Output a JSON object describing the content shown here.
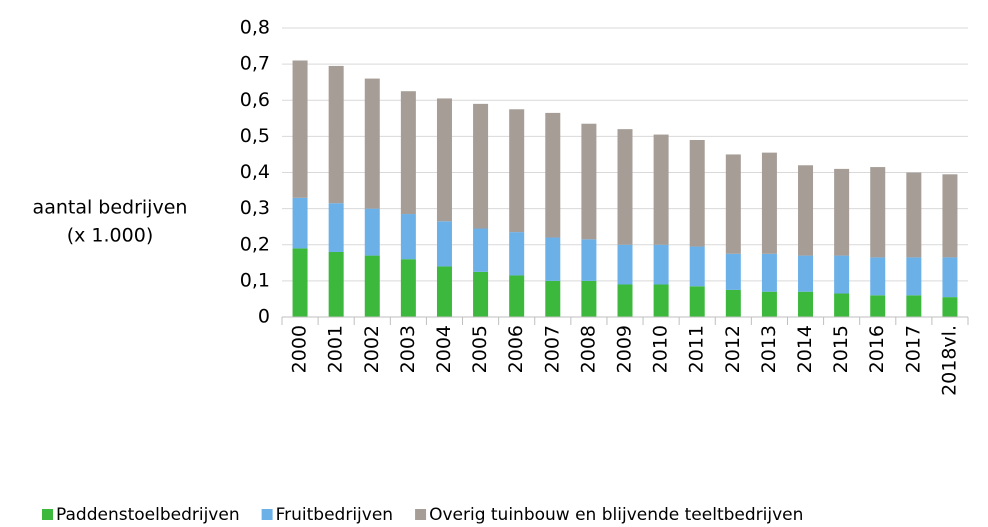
{
  "chart_data": {
    "type": "stacked-bar",
    "y_label": [
      "aantal bedrijven",
      "(x 1.000)"
    ],
    "categories": [
      "2000",
      "2001",
      "2002",
      "2003",
      "2004",
      "2005",
      "2006",
      "2007",
      "2008",
      "2009",
      "2010",
      "2011",
      "2012",
      "2013",
      "2014",
      "2015",
      "2016",
      "2017",
      "2018vl."
    ],
    "series": [
      {
        "name": "Paddenstoelbedrijven",
        "color": "#3cb83c",
        "values": [
          0.19,
          0.18,
          0.17,
          0.16,
          0.14,
          0.125,
          0.115,
          0.1,
          0.1,
          0.09,
          0.09,
          0.085,
          0.075,
          0.07,
          0.07,
          0.065,
          0.06,
          0.06,
          0.055
        ]
      },
      {
        "name": "Fruitbedrijven",
        "color": "#6cb0e8",
        "values": [
          0.14,
          0.135,
          0.13,
          0.125,
          0.125,
          0.12,
          0.12,
          0.12,
          0.115,
          0.11,
          0.11,
          0.11,
          0.1,
          0.105,
          0.1,
          0.105,
          0.105,
          0.105,
          0.11
        ]
      },
      {
        "name": "Overig tuinbouw en blijvende teeltbedrijven",
        "color": "#a59d96",
        "values": [
          0.38,
          0.38,
          0.36,
          0.34,
          0.34,
          0.345,
          0.34,
          0.345,
          0.32,
          0.32,
          0.305,
          0.295,
          0.275,
          0.28,
          0.25,
          0.24,
          0.25,
          0.235,
          0.23
        ]
      }
    ],
    "ylim": [
      0,
      0.8
    ],
    "yticks": [
      0,
      {
        "value": 0.1,
        "label": "0,1"
      },
      {
        "value": 0.2,
        "label": "0,2"
      },
      {
        "value": 0.3,
        "label": "0,3"
      },
      {
        "value": 0.4,
        "label": "0,4"
      },
      {
        "value": 0.5,
        "label": "0,5"
      },
      {
        "value": 0.6,
        "label": "0,6"
      },
      {
        "value": 0.7,
        "label": "0,7"
      },
      {
        "value": 0.8,
        "label": "0,8"
      }
    ],
    "grid": true,
    "legend": "bottom"
  }
}
